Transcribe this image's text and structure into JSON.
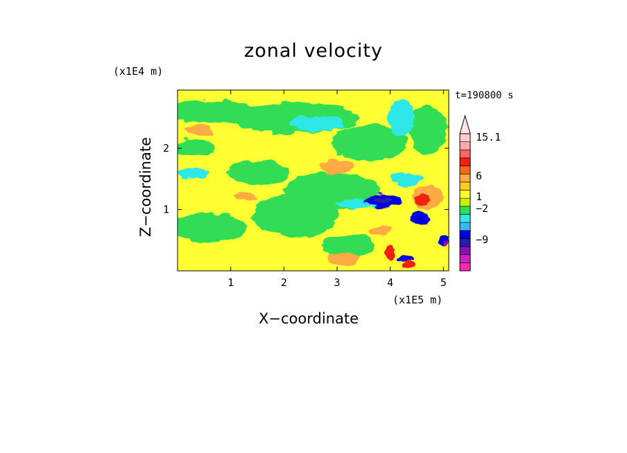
{
  "chart_data": {
    "type": "heatmap",
    "title": "zonal velocity",
    "xlabel": "X−coordinate",
    "ylabel": "Z−coordinate",
    "x_unit": "(x1E5 m)",
    "y_unit": "(x1E4 m)",
    "time_label": "t=190800 s",
    "xlim": [
      0,
      5.1
    ],
    "ylim": [
      0,
      2.95
    ],
    "x_ticks": [
      "1",
      "2",
      "3",
      "4",
      "5"
    ],
    "y_ticks": [
      "1",
      "2"
    ],
    "colorbar": {
      "labels": [
        {
          "value": 15.1,
          "text": "15.1"
        },
        {
          "value": 6,
          "text": "6"
        },
        {
          "value": 1,
          "text": "1"
        },
        {
          "value": -2,
          "text": "−2"
        },
        {
          "value": -9,
          "text": "−9"
        }
      ],
      "colors": [
        "#ff2bb4",
        "#cc22bb",
        "#8e0fb0",
        "#2a1ab0",
        "#0000dd",
        "#3db8ee",
        "#2ee8e8",
        "#33dd55",
        "#ccf000",
        "#ffff33",
        "#ffcc22",
        "#ffaa44",
        "#ff6611",
        "#ee2211",
        "#ff6666",
        "#ffaaaa",
        "#ffcccc"
      ]
    },
    "regions": [
      {
        "level": "green",
        "x": 0.6,
        "z": 2.6,
        "rx": 0.9,
        "rz": 0.18
      },
      {
        "level": "green",
        "x": 2.2,
        "z": 2.5,
        "rx": 1.2,
        "rz": 0.25
      },
      {
        "level": "green",
        "x": 0.3,
        "z": 2.0,
        "rx": 0.4,
        "rz": 0.15
      },
      {
        "level": "green",
        "x": 1.5,
        "z": 1.6,
        "rx": 0.6,
        "rz": 0.2
      },
      {
        "level": "green",
        "x": 2.9,
        "z": 1.3,
        "rx": 0.9,
        "rz": 0.3
      },
      {
        "level": "green",
        "x": 2.2,
        "z": 0.9,
        "rx": 0.8,
        "rz": 0.35
      },
      {
        "level": "green",
        "x": 0.6,
        "z": 0.7,
        "rx": 0.7,
        "rz": 0.25
      },
      {
        "level": "green",
        "x": 3.2,
        "z": 0.4,
        "rx": 0.5,
        "rz": 0.2
      },
      {
        "level": "green",
        "x": 4.7,
        "z": 2.3,
        "rx": 0.35,
        "rz": 0.4
      },
      {
        "level": "green",
        "x": 3.6,
        "z": 2.1,
        "rx": 0.7,
        "rz": 0.3
      },
      {
        "level": "cyan",
        "x": 2.6,
        "z": 2.4,
        "rx": 0.5,
        "rz": 0.12
      },
      {
        "level": "cyan",
        "x": 0.3,
        "z": 1.6,
        "rx": 0.3,
        "rz": 0.08
      },
      {
        "level": "cyan",
        "x": 3.5,
        "z": 1.1,
        "rx": 0.5,
        "rz": 0.08
      },
      {
        "level": "cyan",
        "x": 4.3,
        "z": 1.5,
        "rx": 0.3,
        "rz": 0.12
      },
      {
        "level": "cyan",
        "x": 4.2,
        "z": 2.5,
        "rx": 0.25,
        "rz": 0.3
      },
      {
        "level": "orange",
        "x": 0.4,
        "z": 2.3,
        "rx": 0.25,
        "rz": 0.1
      },
      {
        "level": "orange",
        "x": 3.0,
        "z": 1.7,
        "rx": 0.3,
        "rz": 0.12
      },
      {
        "level": "orange",
        "x": 1.3,
        "z": 1.2,
        "rx": 0.2,
        "rz": 0.07
      },
      {
        "level": "orange",
        "x": 3.8,
        "z": 0.65,
        "rx": 0.2,
        "rz": 0.08
      },
      {
        "level": "orange",
        "x": 4.7,
        "z": 1.2,
        "rx": 0.3,
        "rz": 0.2
      },
      {
        "level": "orange",
        "x": 3.1,
        "z": 0.2,
        "rx": 0.3,
        "rz": 0.1
      },
      {
        "level": "red",
        "x": 4.6,
        "z": 1.15,
        "rx": 0.15,
        "rz": 0.08
      },
      {
        "level": "red",
        "x": 4.0,
        "z": 0.3,
        "rx": 0.1,
        "rz": 0.12
      },
      {
        "level": "red",
        "x": 4.35,
        "z": 0.1,
        "rx": 0.12,
        "rz": 0.06
      },
      {
        "level": "blue",
        "x": 3.85,
        "z": 1.15,
        "rx": 0.35,
        "rz": 0.12
      },
      {
        "level": "blue",
        "x": 4.55,
        "z": 0.85,
        "rx": 0.2,
        "rz": 0.09
      },
      {
        "level": "blue",
        "x": 4.3,
        "z": 0.2,
        "rx": 0.18,
        "rz": 0.05
      },
      {
        "level": "blue",
        "x": 5.0,
        "z": 0.5,
        "rx": 0.12,
        "rz": 0.1
      },
      {
        "level": "darkblue",
        "x": 3.85,
        "z": 1.15,
        "rx": 0.18,
        "rz": 0.06
      },
      {
        "level": "purple",
        "x": 5.05,
        "z": 0.45,
        "rx": 0.05,
        "rz": 0.05
      }
    ]
  }
}
